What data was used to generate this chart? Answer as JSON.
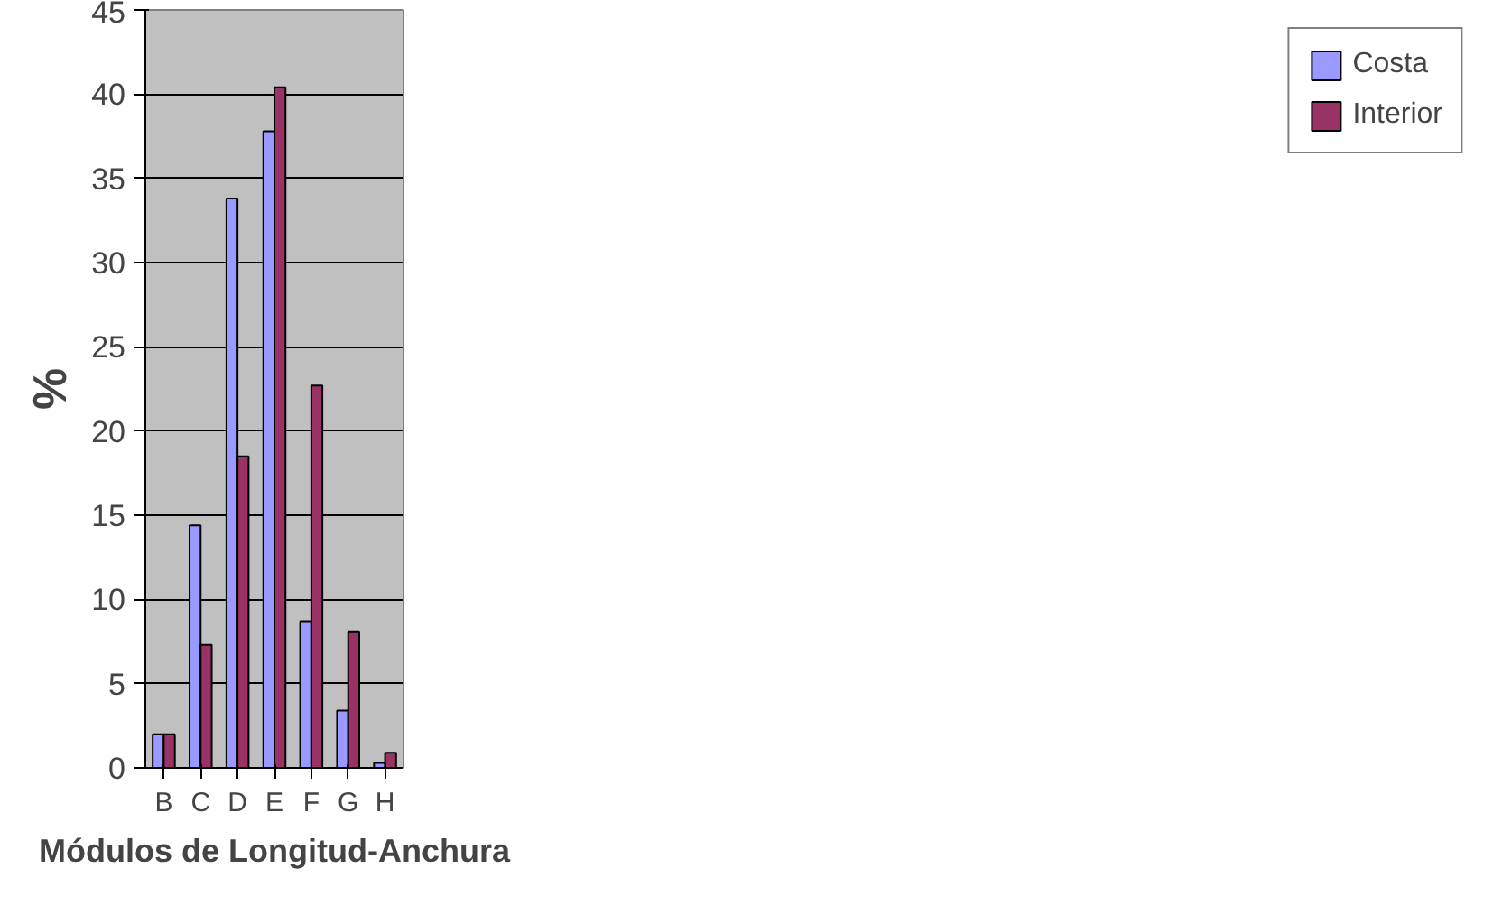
{
  "chart_data": {
    "type": "bar",
    "xlabel": "Módulos de Longitud-Anchura",
    "ylabel": "%",
    "categories": [
      "B",
      "C",
      "D",
      "E",
      "F",
      "G",
      "H"
    ],
    "series": [
      {
        "name": "Costa",
        "color": "#9999ff",
        "values": [
          2,
          14.4,
          33.8,
          37.8,
          8.7,
          3.4,
          0.3
        ]
      },
      {
        "name": "Interior",
        "color": "#993366",
        "values": [
          2,
          7.3,
          18.5,
          40.4,
          22.7,
          8.1,
          0.9
        ]
      }
    ],
    "ylim": [
      0,
      45
    ],
    "yticks": [
      0,
      5,
      10,
      15,
      20,
      25,
      30,
      35,
      40,
      45
    ],
    "grid": "y",
    "legend": "right"
  }
}
